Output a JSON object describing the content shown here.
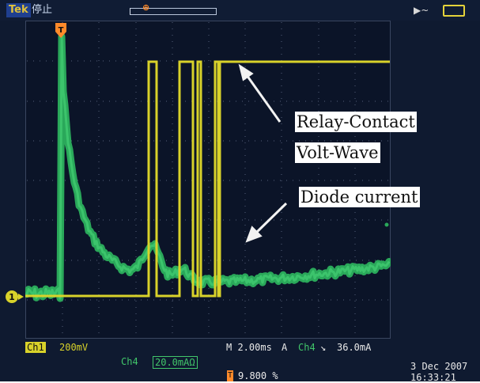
{
  "header": {
    "brand": "Tek",
    "acquisition_state": "停止",
    "icons": [
      "trigger-position-marker",
      "power-plug-icon",
      "battery-icon"
    ]
  },
  "annotations": {
    "relay_line1": "Relay-Contact",
    "relay_line2": "Volt-Wave",
    "diode": "Diode current"
  },
  "markers": {
    "trigger_marker": "T",
    "ch1_ground_marker": "1"
  },
  "status": {
    "ch1_label": "Ch1",
    "ch1_scale": "200mV",
    "ch4_label": "Ch4",
    "ch4_scale": "20.0mAΩ",
    "time_base": "M 2.00ms",
    "trigger_label": "A",
    "trigger_source": "Ch4",
    "trigger_slope": "↘",
    "trigger_level": "36.0mA",
    "trigger_position_icon": "T",
    "trigger_position": "9.800 %",
    "date": "3 Dec  2007",
    "time": "16:33:21"
  },
  "colors": {
    "ch1_yellow": "#d8d22a",
    "ch4_green": "#2aa85a",
    "trigger_orange": "#ff8a2a",
    "background": "#0f1a30"
  }
}
